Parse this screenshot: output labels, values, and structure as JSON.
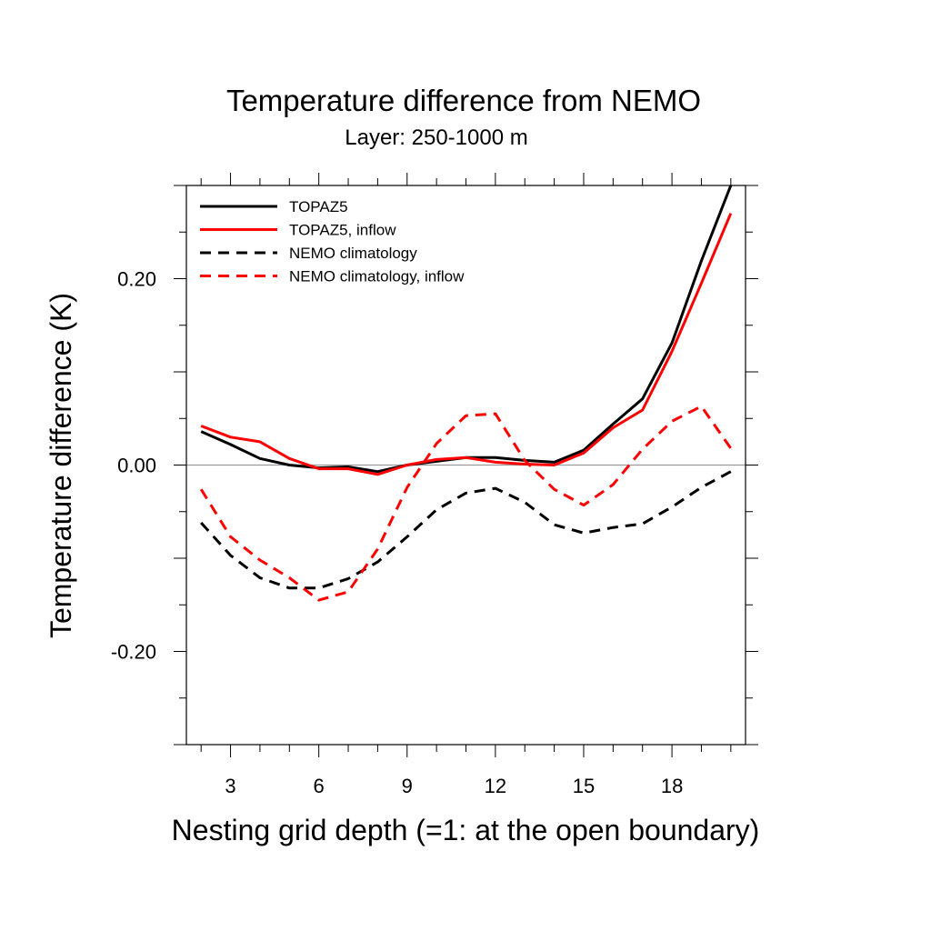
{
  "chart_data": {
    "type": "line",
    "title": "Temperature difference from NEMO",
    "subtitle": "Layer: 250-1000 m",
    "xlabel": "Nesting grid depth (=1: at the open boundary)",
    "ylabel": "Temperature difference (K)",
    "xlim": [
      1.5,
      20.5
    ],
    "ylim": [
      -0.3,
      0.3
    ],
    "x_ticks": [
      3,
      6,
      9,
      12,
      15,
      18
    ],
    "x_tick_labels": [
      "3",
      "6",
      "9",
      "12",
      "15",
      "18"
    ],
    "y_ticks": [
      -0.2,
      0.0,
      0.2
    ],
    "y_tick_labels": [
      "-0.20",
      "0.00",
      "0.20"
    ],
    "zero_line": true,
    "grid": false,
    "legend_position": "top-left",
    "x": [
      2,
      3,
      4,
      5,
      6,
      7,
      8,
      9,
      10,
      11,
      12,
      13,
      14,
      15,
      16,
      17,
      18,
      19,
      20
    ],
    "series": [
      {
        "name": "TOPAZ5",
        "color": "#000000",
        "dash": "solid",
        "values": [
          0.036,
          0.022,
          0.007,
          0.0,
          -0.003,
          -0.002,
          -0.007,
          0.0,
          0.004,
          0.008,
          0.008,
          0.005,
          0.003,
          0.016,
          0.044,
          0.071,
          0.131,
          0.219,
          0.3
        ]
      },
      {
        "name": "TOPAZ5, inflow",
        "color": "#ff0000",
        "dash": "solid",
        "values": [
          0.042,
          0.03,
          0.025,
          0.007,
          -0.004,
          -0.004,
          -0.01,
          0.0,
          0.006,
          0.008,
          0.003,
          0.001,
          0.0,
          0.013,
          0.04,
          0.059,
          0.122,
          0.195,
          0.27
        ]
      },
      {
        "name": "NEMO climatology",
        "color": "#000000",
        "dash": "dashed",
        "values": [
          -0.062,
          -0.097,
          -0.121,
          -0.132,
          -0.132,
          -0.122,
          -0.104,
          -0.077,
          -0.048,
          -0.03,
          -0.025,
          -0.04,
          -0.064,
          -0.073,
          -0.067,
          -0.063,
          -0.045,
          -0.024,
          -0.007
        ]
      },
      {
        "name": "NEMO climatology, inflow",
        "color": "#ff0000",
        "dash": "dashed",
        "values": [
          -0.026,
          -0.077,
          -0.102,
          -0.121,
          -0.145,
          -0.136,
          -0.09,
          -0.024,
          0.023,
          0.053,
          0.055,
          0.005,
          -0.026,
          -0.043,
          -0.021,
          0.017,
          0.047,
          0.063,
          0.018
        ]
      }
    ]
  }
}
